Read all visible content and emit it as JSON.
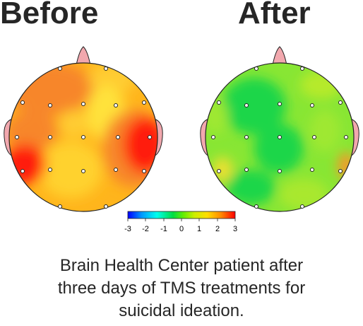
{
  "titles": {
    "before": "Before",
    "after": "After"
  },
  "colorbar": {
    "ticks": [
      "-3",
      "-2",
      "-1",
      "0",
      "1",
      "2",
      "3"
    ],
    "min": -3,
    "max": 3,
    "colors": [
      "#0000ff",
      "#0099ff",
      "#00ffee",
      "#00dd44",
      "#66ee00",
      "#ccee00",
      "#ffdd00",
      "#ff8800",
      "#ff0000"
    ]
  },
  "caption": {
    "line1": "Brain Health Center patient after",
    "line2": "three days of TMS treatments for",
    "line3": "suicidal ideation."
  }
}
